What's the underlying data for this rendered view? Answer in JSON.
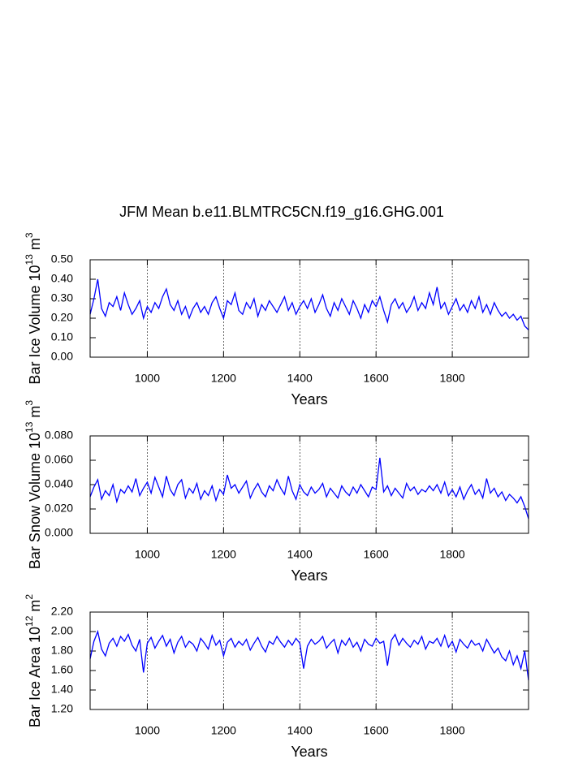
{
  "chart_data": [
    {
      "type": "line",
      "title": "JFM Mean b.e11.BLMTRC5CN.f19_g16.GHG.001",
      "xlabel": "Years",
      "ylabel": "Bar Ice Volume 10",
      "ylabel_power": "13",
      "ylabel_unit": "m",
      "ylabel_unit_power": "3",
      "color": "#0000ff",
      "grid": true,
      "xlim": [
        850,
        2000
      ],
      "xticks": [
        1000,
        1200,
        1400,
        1600,
        1800
      ],
      "ylim": [
        0,
        0.5
      ],
      "yticks": [
        {
          "value": 0,
          "label": "0.00"
        },
        {
          "value": 0.1,
          "label": "0.10"
        },
        {
          "value": 0.2,
          "label": "0.20"
        },
        {
          "value": 0.3,
          "label": "0.30"
        },
        {
          "value": 0.4,
          "label": "0.40"
        },
        {
          "value": 0.5,
          "label": "0.50"
        }
      ],
      "x": [
        850,
        860,
        870,
        880,
        890,
        900,
        910,
        920,
        930,
        940,
        950,
        960,
        970,
        980,
        990,
        1000,
        1010,
        1020,
        1030,
        1040,
        1050,
        1060,
        1070,
        1080,
        1090,
        1100,
        1110,
        1120,
        1130,
        1140,
        1150,
        1160,
        1170,
        1180,
        1190,
        1200,
        1210,
        1220,
        1230,
        1240,
        1250,
        1260,
        1270,
        1280,
        1290,
        1300,
        1310,
        1320,
        1330,
        1340,
        1350,
        1360,
        1370,
        1380,
        1390,
        1400,
        1410,
        1420,
        1430,
        1440,
        1450,
        1460,
        1470,
        1480,
        1490,
        1500,
        1510,
        1520,
        1530,
        1540,
        1550,
        1560,
        1570,
        1580,
        1590,
        1600,
        1610,
        1620,
        1630,
        1640,
        1650,
        1660,
        1670,
        1680,
        1690,
        1700,
        1710,
        1720,
        1730,
        1740,
        1750,
        1760,
        1770,
        1780,
        1790,
        1800,
        1810,
        1820,
        1830,
        1840,
        1850,
        1860,
        1870,
        1880,
        1890,
        1900,
        1910,
        1920,
        1930,
        1940,
        1950,
        1960,
        1970,
        1980,
        1990,
        2000
      ],
      "values": [
        0.22,
        0.3,
        0.4,
        0.25,
        0.21,
        0.28,
        0.26,
        0.31,
        0.24,
        0.33,
        0.27,
        0.22,
        0.25,
        0.29,
        0.2,
        0.26,
        0.23,
        0.28,
        0.25,
        0.31,
        0.35,
        0.27,
        0.24,
        0.29,
        0.22,
        0.26,
        0.2,
        0.25,
        0.28,
        0.23,
        0.26,
        0.22,
        0.28,
        0.31,
        0.25,
        0.2,
        0.29,
        0.27,
        0.33,
        0.24,
        0.22,
        0.28,
        0.25,
        0.3,
        0.21,
        0.27,
        0.24,
        0.29,
        0.26,
        0.23,
        0.27,
        0.31,
        0.24,
        0.28,
        0.22,
        0.26,
        0.29,
        0.25,
        0.3,
        0.23,
        0.27,
        0.32,
        0.25,
        0.21,
        0.28,
        0.24,
        0.3,
        0.26,
        0.22,
        0.29,
        0.25,
        0.2,
        0.27,
        0.23,
        0.29,
        0.26,
        0.31,
        0.24,
        0.18,
        0.27,
        0.3,
        0.25,
        0.28,
        0.23,
        0.26,
        0.31,
        0.24,
        0.28,
        0.25,
        0.33,
        0.27,
        0.36,
        0.25,
        0.28,
        0.22,
        0.26,
        0.3,
        0.24,
        0.27,
        0.23,
        0.29,
        0.25,
        0.31,
        0.23,
        0.27,
        0.22,
        0.28,
        0.24,
        0.21,
        0.23,
        0.2,
        0.22,
        0.19,
        0.21,
        0.16,
        0.14
      ]
    },
    {
      "type": "line",
      "xlabel": "Years",
      "ylabel": "Bar Snow Volume 10",
      "ylabel_power": "13",
      "ylabel_unit": "m",
      "ylabel_unit_power": "3",
      "color": "#0000ff",
      "grid": true,
      "xlim": [
        850,
        2000
      ],
      "xticks": [
        1000,
        1200,
        1400,
        1600,
        1800
      ],
      "ylim": [
        0,
        0.08
      ],
      "yticks": [
        {
          "value": 0,
          "label": "0.000"
        },
        {
          "value": 0.02,
          "label": "0.020"
        },
        {
          "value": 0.04,
          "label": "0.040"
        },
        {
          "value": 0.06,
          "label": "0.060"
        },
        {
          "value": 0.08,
          "label": "0.080"
        }
      ],
      "x": [
        850,
        860,
        870,
        880,
        890,
        900,
        910,
        920,
        930,
        940,
        950,
        960,
        970,
        980,
        990,
        1000,
        1010,
        1020,
        1030,
        1040,
        1050,
        1060,
        1070,
        1080,
        1090,
        1100,
        1110,
        1120,
        1130,
        1140,
        1150,
        1160,
        1170,
        1180,
        1190,
        1200,
        1210,
        1220,
        1230,
        1240,
        1250,
        1260,
        1270,
        1280,
        1290,
        1300,
        1310,
        1320,
        1330,
        1340,
        1350,
        1360,
        1370,
        1380,
        1390,
        1400,
        1410,
        1420,
        1430,
        1440,
        1450,
        1460,
        1470,
        1480,
        1490,
        1500,
        1510,
        1520,
        1530,
        1540,
        1550,
        1560,
        1570,
        1580,
        1590,
        1600,
        1610,
        1620,
        1630,
        1640,
        1650,
        1660,
        1670,
        1680,
        1690,
        1700,
        1710,
        1720,
        1730,
        1740,
        1750,
        1760,
        1770,
        1780,
        1790,
        1800,
        1810,
        1820,
        1830,
        1840,
        1850,
        1860,
        1870,
        1880,
        1890,
        1900,
        1910,
        1920,
        1930,
        1940,
        1950,
        1960,
        1970,
        1980,
        1990,
        2000
      ],
      "values": [
        0.03,
        0.038,
        0.044,
        0.028,
        0.035,
        0.031,
        0.04,
        0.026,
        0.036,
        0.033,
        0.039,
        0.034,
        0.045,
        0.031,
        0.037,
        0.042,
        0.033,
        0.046,
        0.038,
        0.03,
        0.047,
        0.036,
        0.031,
        0.04,
        0.044,
        0.029,
        0.037,
        0.033,
        0.041,
        0.028,
        0.035,
        0.031,
        0.039,
        0.027,
        0.036,
        0.032,
        0.048,
        0.037,
        0.04,
        0.033,
        0.038,
        0.043,
        0.029,
        0.036,
        0.041,
        0.034,
        0.03,
        0.039,
        0.035,
        0.044,
        0.037,
        0.032,
        0.047,
        0.035,
        0.028,
        0.04,
        0.034,
        0.031,
        0.038,
        0.033,
        0.036,
        0.041,
        0.03,
        0.037,
        0.033,
        0.029,
        0.039,
        0.034,
        0.031,
        0.038,
        0.033,
        0.04,
        0.035,
        0.03,
        0.038,
        0.036,
        0.062,
        0.034,
        0.039,
        0.031,
        0.037,
        0.033,
        0.029,
        0.041,
        0.035,
        0.038,
        0.032,
        0.036,
        0.034,
        0.039,
        0.035,
        0.04,
        0.033,
        0.042,
        0.031,
        0.036,
        0.03,
        0.038,
        0.028,
        0.035,
        0.04,
        0.032,
        0.036,
        0.029,
        0.045,
        0.033,
        0.037,
        0.03,
        0.034,
        0.027,
        0.032,
        0.029,
        0.025,
        0.03,
        0.022,
        0.012
      ]
    },
    {
      "type": "line",
      "xlabel": "Years",
      "ylabel": "Bar Ice Area 10",
      "ylabel_power": "12",
      "ylabel_unit": "m",
      "ylabel_unit_power": "2",
      "color": "#0000ff",
      "grid": true,
      "xlim": [
        850,
        2000
      ],
      "xticks": [
        1000,
        1200,
        1400,
        1600,
        1800
      ],
      "ylim": [
        1.2,
        2.2
      ],
      "yticks": [
        {
          "value": 1.2,
          "label": "1.20"
        },
        {
          "value": 1.4,
          "label": "1.40"
        },
        {
          "value": 1.6,
          "label": "1.60"
        },
        {
          "value": 1.8,
          "label": "1.80"
        },
        {
          "value": 2.0,
          "label": "2.00"
        },
        {
          "value": 2.2,
          "label": "2.20"
        }
      ],
      "x": [
        850,
        860,
        870,
        880,
        890,
        900,
        910,
        920,
        930,
        940,
        950,
        960,
        970,
        980,
        990,
        1000,
        1010,
        1020,
        1030,
        1040,
        1050,
        1060,
        1070,
        1080,
        1090,
        1100,
        1110,
        1120,
        1130,
        1140,
        1150,
        1160,
        1170,
        1180,
        1190,
        1200,
        1210,
        1220,
        1230,
        1240,
        1250,
        1260,
        1270,
        1280,
        1290,
        1300,
        1310,
        1320,
        1330,
        1340,
        1350,
        1360,
        1370,
        1380,
        1390,
        1400,
        1410,
        1420,
        1430,
        1440,
        1450,
        1460,
        1470,
        1480,
        1490,
        1500,
        1510,
        1520,
        1530,
        1540,
        1550,
        1560,
        1570,
        1580,
        1590,
        1600,
        1610,
        1620,
        1630,
        1640,
        1650,
        1660,
        1670,
        1680,
        1690,
        1700,
        1710,
        1720,
        1730,
        1740,
        1750,
        1760,
        1770,
        1780,
        1790,
        1800,
        1810,
        1820,
        1830,
        1840,
        1850,
        1860,
        1870,
        1880,
        1890,
        1900,
        1910,
        1920,
        1930,
        1940,
        1950,
        1960,
        1970,
        1980,
        1990,
        2000
      ],
      "values": [
        1.72,
        1.9,
        2.0,
        1.82,
        1.75,
        1.88,
        1.93,
        1.85,
        1.95,
        1.9,
        1.97,
        1.86,
        1.8,
        1.92,
        1.58,
        1.88,
        1.94,
        1.83,
        1.9,
        1.96,
        1.85,
        1.92,
        1.78,
        1.89,
        1.95,
        1.84,
        1.9,
        1.87,
        1.8,
        1.93,
        1.88,
        1.82,
        1.96,
        1.86,
        1.91,
        1.75,
        1.89,
        1.93,
        1.84,
        1.9,
        1.86,
        1.92,
        1.81,
        1.88,
        1.94,
        1.85,
        1.79,
        1.9,
        1.87,
        1.95,
        1.89,
        1.84,
        1.91,
        1.86,
        1.93,
        1.88,
        1.62,
        1.85,
        1.92,
        1.87,
        1.9,
        1.95,
        1.83,
        1.88,
        1.92,
        1.78,
        1.91,
        1.86,
        1.93,
        1.84,
        1.89,
        1.8,
        1.92,
        1.87,
        1.85,
        1.93,
        1.88,
        1.9,
        1.65,
        1.91,
        1.97,
        1.86,
        1.93,
        1.88,
        1.84,
        1.91,
        1.87,
        1.95,
        1.82,
        1.9,
        1.88,
        1.93,
        1.85,
        1.96,
        1.84,
        1.9,
        1.79,
        1.92,
        1.87,
        1.83,
        1.91,
        1.86,
        1.88,
        1.8,
        1.92,
        1.85,
        1.78,
        1.83,
        1.74,
        1.7,
        1.8,
        1.66,
        1.75,
        1.62,
        1.8,
        1.5
      ]
    }
  ]
}
